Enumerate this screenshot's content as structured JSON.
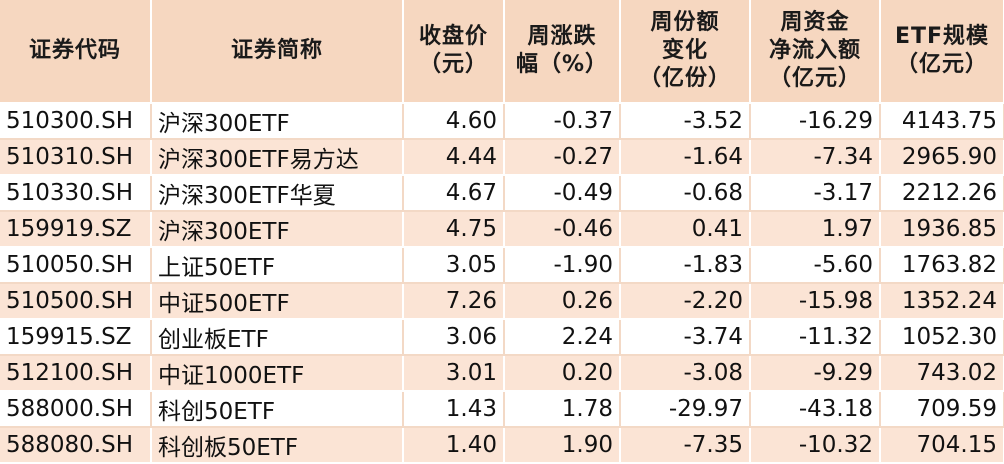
{
  "headers": [
    [
      "证券代码"
    ],
    [
      "证券简称"
    ],
    [
      "收盘价",
      "（元）"
    ],
    [
      "周涨跌",
      "幅（%）"
    ],
    [
      "周份额",
      "变化",
      "（亿份）"
    ],
    [
      "周资金",
      "净流入额",
      "（亿元）"
    ],
    [
      "ETF规模",
      "（亿元）"
    ]
  ],
  "rows": [
    [
      "510300.SH",
      "沪深300ETF",
      "4.60",
      "-0.37",
      "-3.52",
      "-16.29",
      "4143.75"
    ],
    [
      "510310.SH",
      "沪深300ETF易方达",
      "4.44",
      "-0.27",
      "-1.64",
      "-7.34",
      "2965.90"
    ],
    [
      "510330.SH",
      "沪深300ETF华夏",
      "4.67",
      "-0.49",
      "-0.68",
      "-3.17",
      "2212.26"
    ],
    [
      "159919.SZ",
      "沪深300ETF",
      "4.75",
      "-0.46",
      "0.41",
      "1.97",
      "1936.85"
    ],
    [
      "510050.SH",
      "上证50ETF",
      "3.05",
      "-1.90",
      "-1.83",
      "-5.60",
      "1763.82"
    ],
    [
      "510500.SH",
      "中证500ETF",
      "7.26",
      "0.26",
      "-2.20",
      "-15.98",
      "1352.24"
    ],
    [
      "159915.SZ",
      "创业板ETF",
      "3.06",
      "2.24",
      "-3.74",
      "-11.32",
      "1052.30"
    ],
    [
      "512100.SH",
      "中证1000ETF",
      "3.01",
      "0.20",
      "-3.08",
      "-9.29",
      "743.02"
    ],
    [
      "588000.SH",
      "科创50ETF",
      "1.43",
      "1.78",
      "-29.97",
      "-43.18",
      "709.59"
    ],
    [
      "588080.SH",
      "科创板50ETF",
      "1.40",
      "1.90",
      "-7.35",
      "-10.32",
      "704.15"
    ]
  ],
  "colors": {
    "header_bg": "#f6d7c0",
    "even_row_bg": "#fbe4d5",
    "odd_row_bg": "#ffffff"
  }
}
